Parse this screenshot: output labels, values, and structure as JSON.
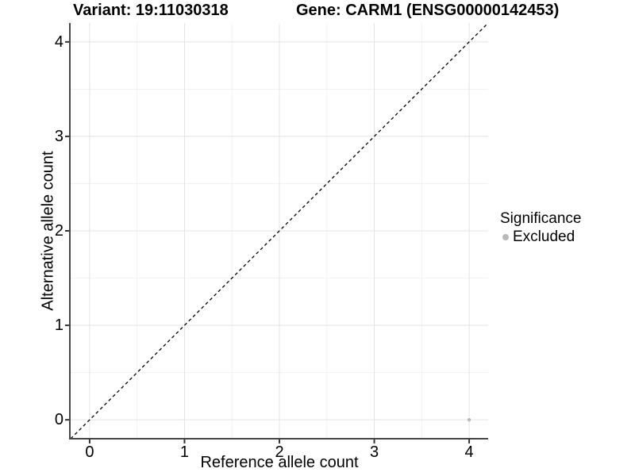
{
  "chart_data": {
    "type": "scatter",
    "title_variant": "Variant: 19:11030318",
    "title_gene": "Gene: CARM1 (ENSG00000142453)",
    "xlabel": "Reference allele count",
    "ylabel": "Alternative allele count",
    "xlim": [
      -0.2,
      4.2
    ],
    "ylim": [
      -0.2,
      4.2
    ],
    "x_ticks": [
      0,
      1,
      2,
      3,
      4
    ],
    "y_ticks": [
      0,
      1,
      2,
      3,
      4
    ],
    "x_minor_ticks": [
      0.5,
      1.5,
      2.5,
      3.5
    ],
    "y_minor_ticks": [
      0.5,
      1.5,
      2.5,
      3.5
    ],
    "grid": true,
    "legend_position": "right",
    "identity_line": {
      "style": "dashed",
      "from": [
        -0.2,
        -0.2
      ],
      "to": [
        4.2,
        4.2
      ],
      "color": "#000000"
    },
    "points": [
      {
        "x": 4,
        "y": 0,
        "significance": "Excluded"
      }
    ],
    "legend": {
      "title": "Significance",
      "items": [
        {
          "label": "Excluded",
          "color": "#b9b9b9"
        }
      ]
    },
    "colors": {
      "point_excluded": "#b9b9b9",
      "grid_major": "#e3e3e3",
      "grid_minor": "#f1f1f1",
      "axis_line": "#464646",
      "tick": "#333333",
      "text": "#000000",
      "background": "#ffffff"
    }
  }
}
